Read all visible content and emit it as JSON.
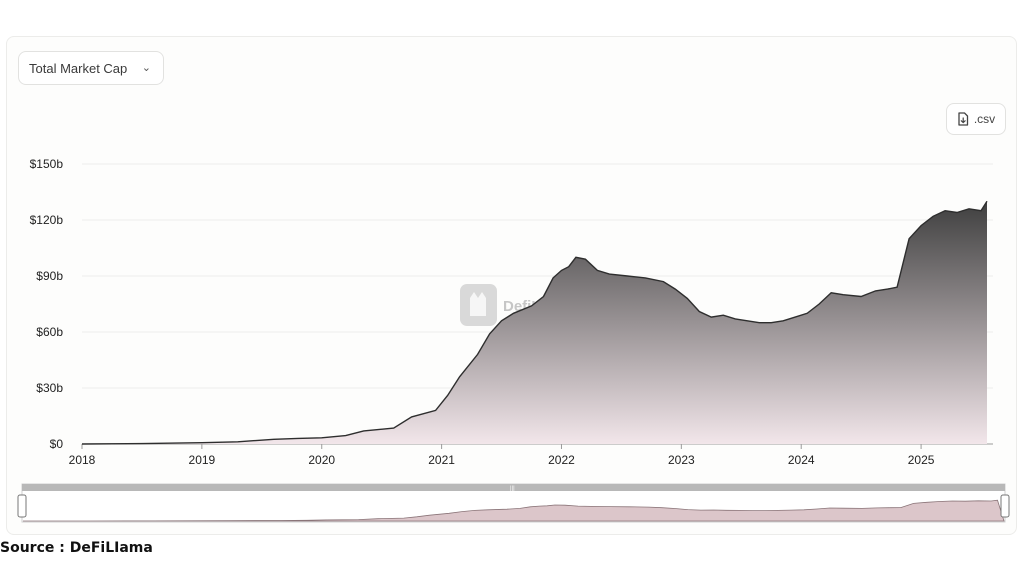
{
  "controls": {
    "metric_select": "Total Market Cap",
    "download_label": ".csv",
    "icons": {
      "dropdown": "chevron-down-icon",
      "download": "file-download-icon",
      "watermark": "defillama-logo"
    }
  },
  "watermark": "DefiLlama",
  "source": "Source : DeFiLIama",
  "colors": {
    "line": "#2e2e2e",
    "fill_top": "#3f3f3f",
    "fill_bottom": "#f2e6ea",
    "navigator_fill": "#dcc6ca"
  },
  "chart_data": {
    "type": "area",
    "title": "",
    "xlabel": "",
    "ylabel": "",
    "x_ticks": [
      "2018",
      "2019",
      "2020",
      "2021",
      "2022",
      "2023",
      "2024",
      "2025"
    ],
    "y_ticks": [
      "$0",
      "$30b",
      "$60b",
      "$90b",
      "$120b",
      "$150b"
    ],
    "x_range": [
      2018.0,
      2025.6
    ],
    "ylim": [
      0,
      150
    ],
    "grid": true,
    "series": [
      {
        "unit": "$b",
        "x": [
          2018.0,
          2018.5,
          2019.0,
          2019.3,
          2019.6,
          2019.8,
          2020.0,
          2020.2,
          2020.35,
          2020.6,
          2020.75,
          2020.95,
          2021.05,
          2021.15,
          2021.3,
          2021.4,
          2021.5,
          2021.6,
          2021.75,
          2021.85,
          2021.93,
          2022.0,
          2022.06,
          2022.12,
          2022.2,
          2022.3,
          2022.4,
          2022.55,
          2022.7,
          2022.85,
          2022.95,
          2023.05,
          2023.15,
          2023.25,
          2023.35,
          2023.45,
          2023.55,
          2023.65,
          2023.75,
          2023.85,
          2023.95,
          2024.05,
          2024.15,
          2024.25,
          2024.35,
          2024.5,
          2024.62,
          2024.72,
          2024.8,
          2024.85,
          2024.9,
          2025.0,
          2025.1,
          2025.2,
          2025.3,
          2025.4,
          2025.5,
          2025.55
        ],
        "values": [
          0,
          0.2,
          0.7,
          1.2,
          2.5,
          3.0,
          3.3,
          4.5,
          7.0,
          8.5,
          14.5,
          18.0,
          26.0,
          36.0,
          48.0,
          59.0,
          66.0,
          70.0,
          74.0,
          79.0,
          89.0,
          93.0,
          95.0,
          100.0,
          99.0,
          93.0,
          91.0,
          90.0,
          89.0,
          87.0,
          83.0,
          78.0,
          71.0,
          68.0,
          69.0,
          67.0,
          66.0,
          65.0,
          65.0,
          66.0,
          68.0,
          70.0,
          75.0,
          81.0,
          80.0,
          79.0,
          82.0,
          83.0,
          84.0,
          97.0,
          110.0,
          117.0,
          122.0,
          125.0,
          124.0,
          126.0,
          125.0,
          130.0
        ]
      }
    ]
  }
}
